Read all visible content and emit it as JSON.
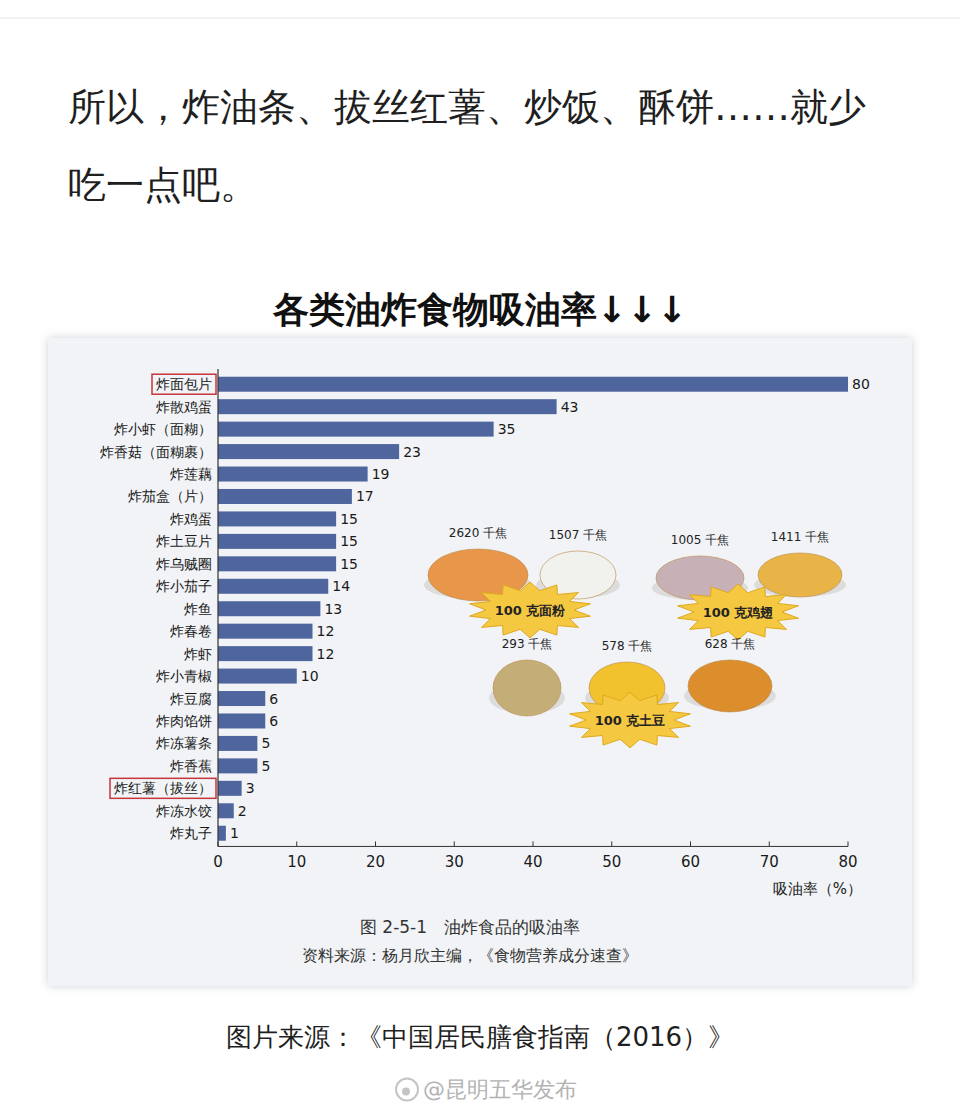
{
  "header": {
    "text": "所以，炸油条、拔丝红薯、炒饭、酥饼……就少吃一点吧。"
  },
  "heading": "各类油炸食物吸油率↓↓↓",
  "chart_data": {
    "type": "bar",
    "orientation": "horizontal",
    "title": "图 2-5-1　油炸食品的吸油率",
    "subtitle": "资料来源：杨月欣主编，《食物营养成分速查》",
    "x_label": "吸油率（%）",
    "categories": [
      "炸面包片",
      "炸散鸡蛋",
      "炸小虾（面糊）",
      "炸香菇（面糊裹）",
      "炸莲藕",
      "炸茄盒（片）",
      "炸鸡蛋",
      "炸土豆片",
      "炸乌贼圈",
      "炸小茄子",
      "炸鱼",
      "炸春卷",
      "炸虾",
      "炸小青椒",
      "炸豆腐",
      "炸肉馅饼",
      "炸冻薯条",
      "炸香蕉",
      "炸红薯（拔丝）",
      "炸冻水饺",
      "炸丸子"
    ],
    "values": [
      80,
      43,
      35,
      23,
      19,
      17,
      15,
      15,
      15,
      14,
      13,
      12,
      12,
      10,
      6,
      6,
      5,
      5,
      3,
      2,
      1
    ],
    "color": "#4f659e",
    "xlim": [
      0,
      80
    ],
    "xticks": [
      0,
      10,
      20,
      30,
      40,
      50,
      60,
      70,
      80
    ],
    "grid": false,
    "data_labels": true,
    "annotations": [
      {
        "label": "100 克面粉",
        "energy": [
          "2620 千焦",
          "1507 千焦"
        ]
      },
      {
        "label": "100 克鸡翅",
        "energy": [
          "1005 千焦",
          "1411 千焦"
        ]
      },
      {
        "label": "100 克土豆",
        "energy": [
          "293 千焦",
          "578 千焦",
          "628 千焦"
        ]
      }
    ]
  },
  "footer": {
    "source": "图片来源：《中国居民膳食指南（2016）》",
    "watermark": "@昆明五华发布"
  }
}
